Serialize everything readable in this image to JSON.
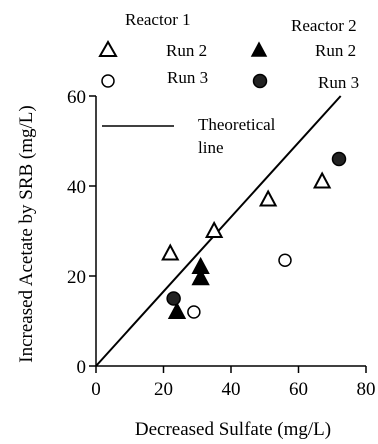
{
  "chart_data": {
    "type": "scatter",
    "xlabel": "Decreased Sulfate (mg/L)",
    "ylabel": "Increased Acetate by SRB (mg/L)",
    "xlim": [
      0,
      80
    ],
    "ylim": [
      0,
      60
    ],
    "xticks": [
      0,
      20,
      40,
      60,
      80
    ],
    "yticks": [
      0,
      20,
      40,
      60
    ],
    "xtick_labels": [
      "0",
      "20",
      "40",
      "60",
      "80"
    ],
    "ytick_labels": [
      "0",
      "20",
      "40",
      "60"
    ],
    "grid": false,
    "legend": {
      "groups": [
        {
          "title": "Reactor 1",
          "items": [
            {
              "label": "Run 2",
              "marker": "triangle-open"
            },
            {
              "label": "Run 3",
              "marker": "circle-open"
            }
          ]
        },
        {
          "title": "Reactor 2",
          "items": [
            {
              "label": "Run 2",
              "marker": "triangle-filled"
            },
            {
              "label": "Run 3",
              "marker": "circle-filled"
            }
          ]
        }
      ],
      "line_label": [
        "Theoretical",
        "line"
      ]
    },
    "series": [
      {
        "marker": "triangle-open",
        "points": [
          [
            22,
            25
          ],
          [
            35,
            30
          ],
          [
            51,
            37
          ],
          [
            67,
            41
          ]
        ]
      },
      {
        "marker": "circle-open",
        "points": [
          [
            29,
            12
          ],
          [
            56,
            23.5
          ]
        ]
      },
      {
        "marker": "triangle-filled",
        "points": [
          [
            24,
            12
          ],
          [
            31,
            19.5
          ],
          [
            31,
            22
          ]
        ]
      },
      {
        "marker": "circle-filled",
        "points": [
          [
            23,
            15
          ],
          [
            72,
            46
          ]
        ]
      }
    ],
    "theoretical_line": {
      "x": [
        0,
        72.5
      ],
      "y": [
        0,
        60
      ]
    }
  }
}
